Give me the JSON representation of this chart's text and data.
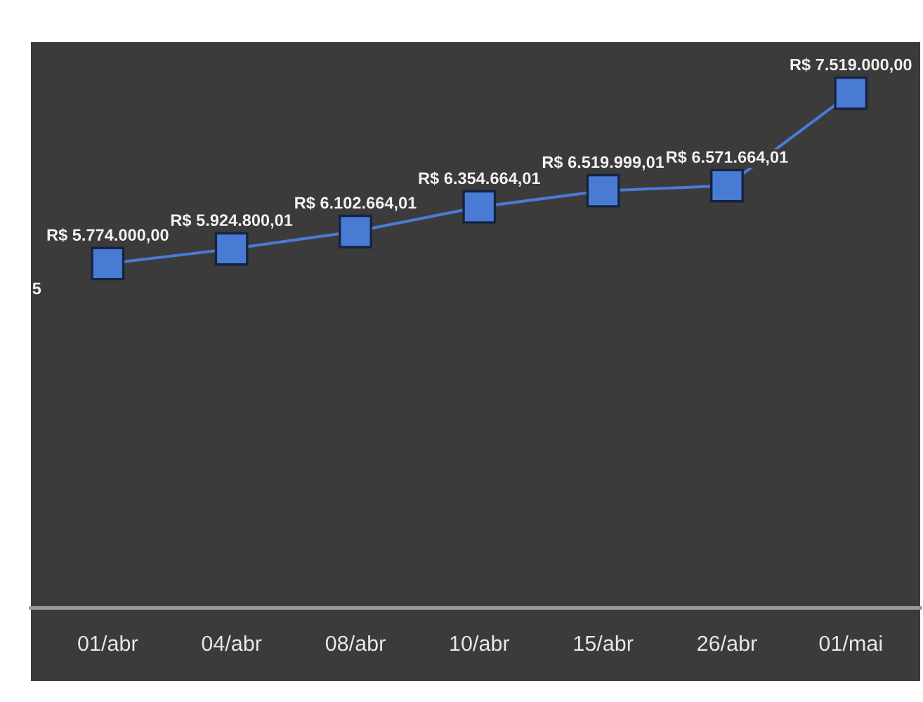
{
  "chart_data": {
    "type": "line",
    "categories": [
      "01/abr",
      "04/abr",
      "08/abr",
      "10/abr",
      "15/abr",
      "26/abr",
      "01/mai"
    ],
    "values": [
      5774000.0,
      5924800.01,
      6102664.01,
      6354664.01,
      6519999.01,
      6571664.01,
      7519000.0
    ],
    "value_labels": [
      "R$ 5.774.000,00",
      "R$ 5.924.800,01",
      "R$ 6.102.664,01",
      "R$ 6.354.664,01",
      "R$ 6.519.999,01",
      "R$ 6.571.664,01",
      "R$ 7.519.000,00"
    ],
    "color": "#4a7bd4",
    "marker": "square",
    "annotations": [
      "5"
    ]
  }
}
